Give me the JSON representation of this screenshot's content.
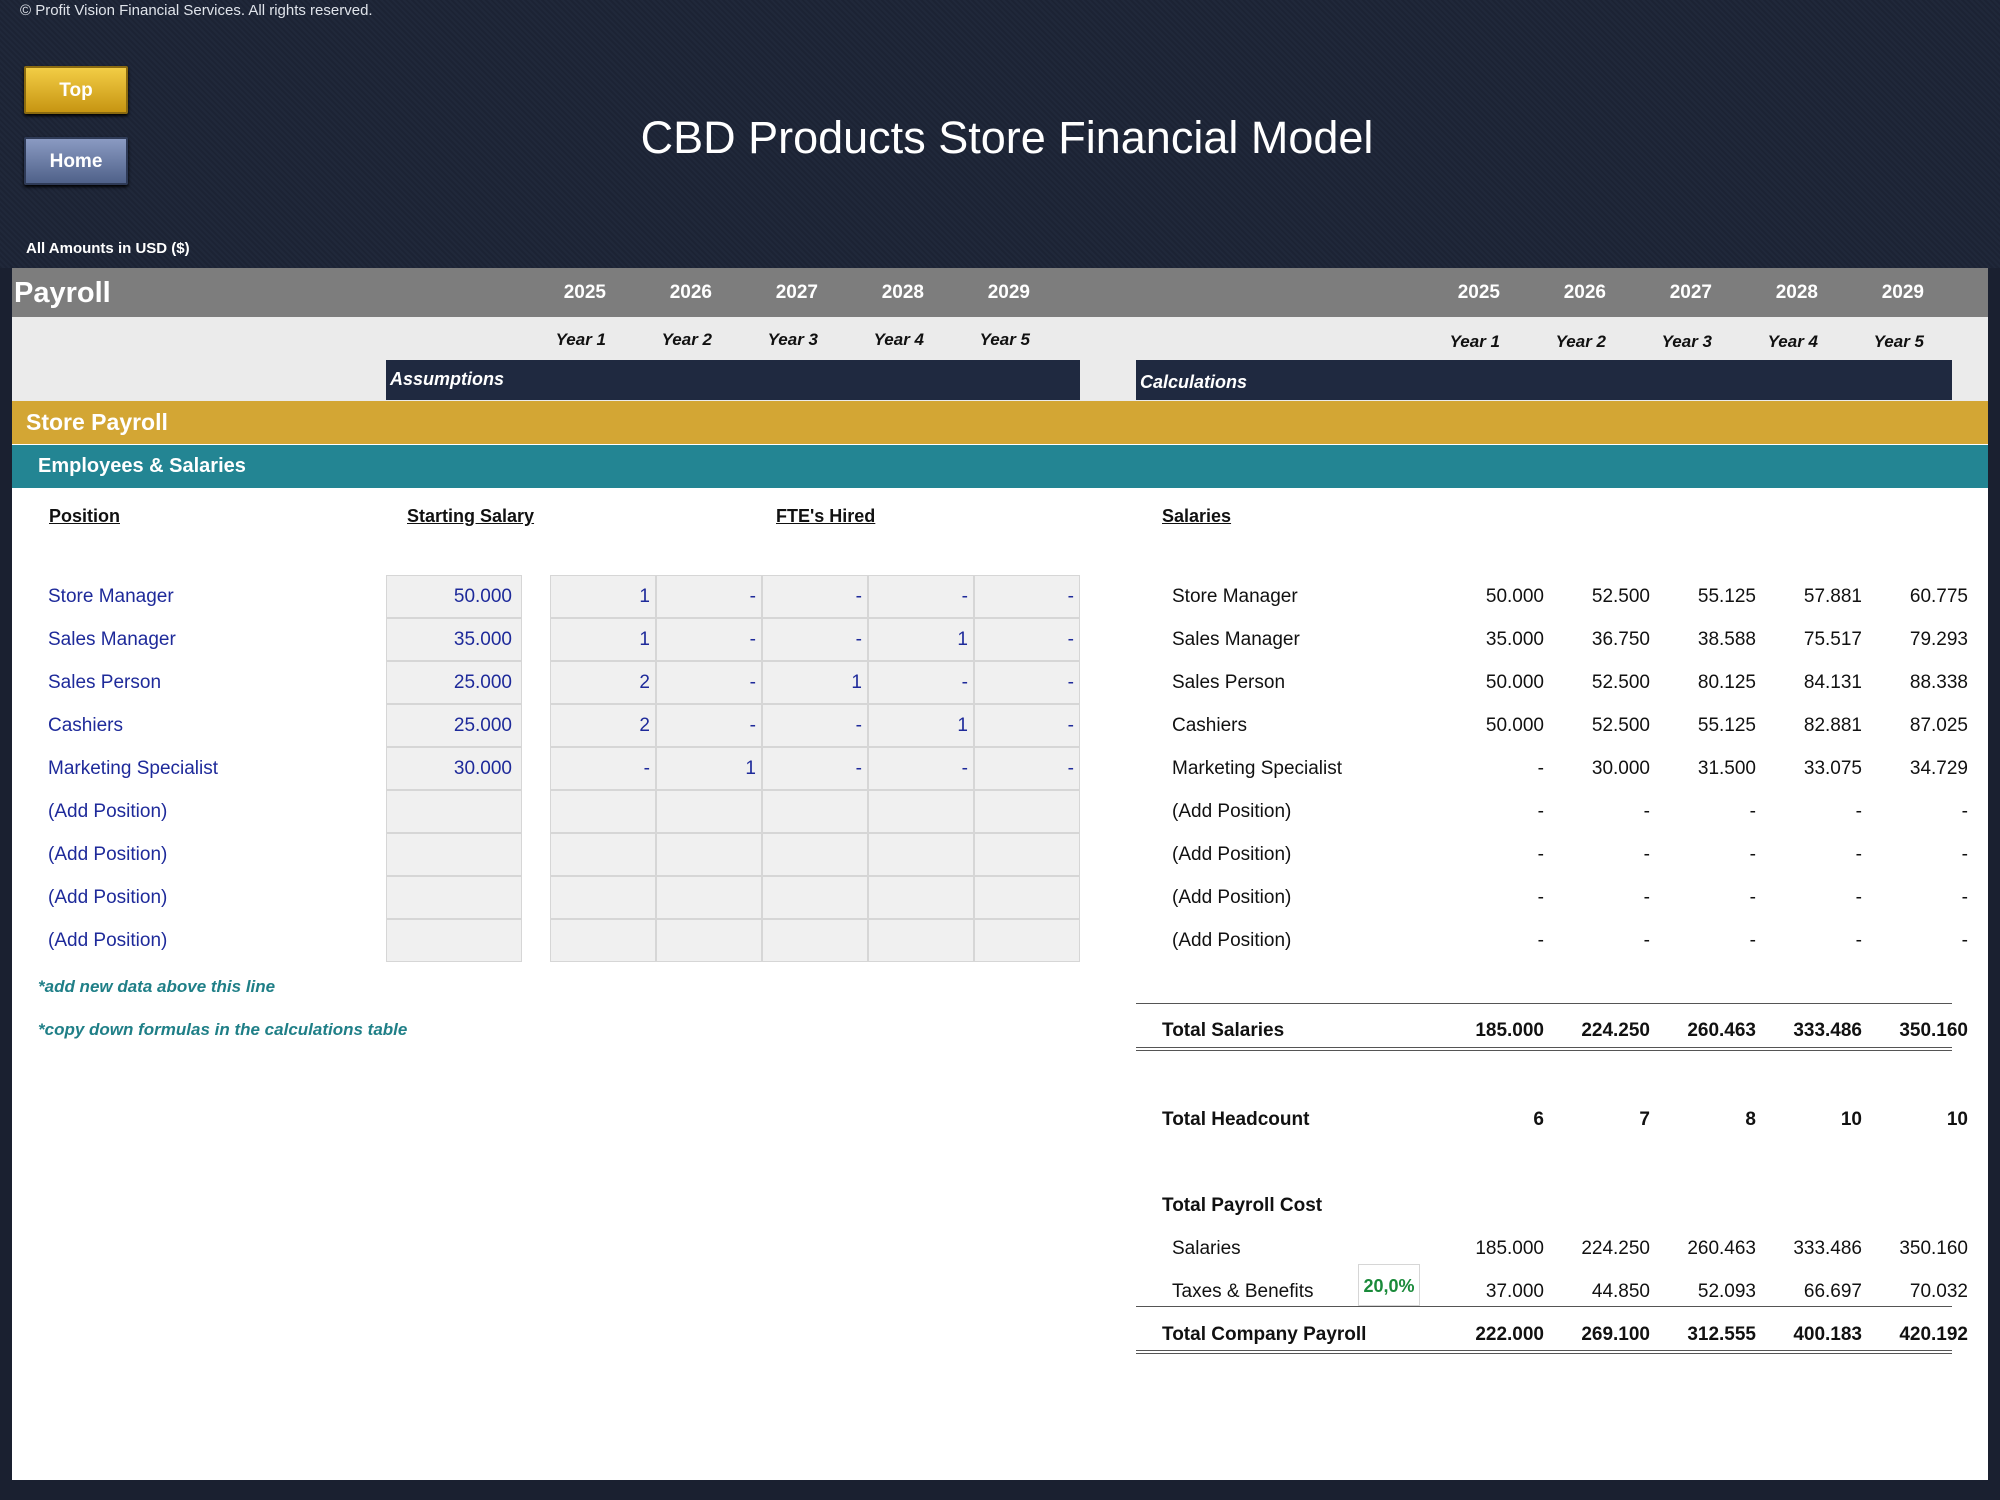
{
  "header": {
    "copyright": "© Profit Vision Financial Services. All rights reserved.",
    "top_button": "Top",
    "home_button": "Home",
    "title": "CBD Products Store Financial Model",
    "currency_note": "All Amounts in  USD ($)"
  },
  "sheet": {
    "title": "Payroll",
    "years": [
      "2025",
      "2026",
      "2027",
      "2028",
      "2029"
    ],
    "year_labels": [
      "Year 1",
      "Year 2",
      "Year 3",
      "Year 4",
      "Year 5"
    ],
    "assumptions_label": "Assumptions",
    "calculations_label": "Calculations",
    "section": "Store Payroll",
    "subsection": "Employees & Salaries",
    "col_position": "Position",
    "col_starting_salary": "Starting Salary",
    "col_fte": "FTE's Hired",
    "col_salaries": "Salaries"
  },
  "positions": [
    {
      "name": "Store Manager",
      "salary": "50.000",
      "fte": [
        "1",
        "-",
        "-",
        "-",
        "-"
      ],
      "salaries": [
        "50.000",
        "52.500",
        "55.125",
        "57.881",
        "60.775"
      ]
    },
    {
      "name": "Sales Manager",
      "salary": "35.000",
      "fte": [
        "1",
        "-",
        "-",
        "1",
        "-"
      ],
      "salaries": [
        "35.000",
        "36.750",
        "38.588",
        "75.517",
        "79.293"
      ]
    },
    {
      "name": "Sales Person",
      "salary": "25.000",
      "fte": [
        "2",
        "-",
        "1",
        "-",
        "-"
      ],
      "salaries": [
        "50.000",
        "52.500",
        "80.125",
        "84.131",
        "88.338"
      ]
    },
    {
      "name": "Cashiers",
      "salary": "25.000",
      "fte": [
        "2",
        "-",
        "-",
        "1",
        "-"
      ],
      "salaries": [
        "50.000",
        "52.500",
        "55.125",
        "82.881",
        "87.025"
      ]
    },
    {
      "name": "Marketing Specialist",
      "salary": "30.000",
      "fte": [
        "-",
        "1",
        "-",
        "-",
        "-"
      ],
      "salaries": [
        "-",
        "30.000",
        "31.500",
        "33.075",
        "34.729"
      ]
    },
    {
      "name": "(Add Position)",
      "salary": "",
      "fte": [
        "",
        "",
        "",
        "",
        ""
      ],
      "salaries": [
        "-",
        "-",
        "-",
        "-",
        "-"
      ]
    },
    {
      "name": "(Add Position)",
      "salary": "",
      "fte": [
        "",
        "",
        "",
        "",
        ""
      ],
      "salaries": [
        "-",
        "-",
        "-",
        "-",
        "-"
      ]
    },
    {
      "name": "(Add Position)",
      "salary": "",
      "fte": [
        "",
        "",
        "",
        "",
        ""
      ],
      "salaries": [
        "-",
        "-",
        "-",
        "-",
        "-"
      ]
    },
    {
      "name": "(Add Position)",
      "salary": "",
      "fte": [
        "",
        "",
        "",
        "",
        ""
      ],
      "salaries": [
        "-",
        "-",
        "-",
        "-",
        "-"
      ]
    }
  ],
  "notes": [
    "*add new data above this line",
    "*copy down formulas in the calculations table"
  ],
  "totals": {
    "total_salaries_label": "Total Salaries",
    "total_salaries": [
      "185.000",
      "224.250",
      "260.463",
      "333.486",
      "350.160"
    ],
    "headcount_label": "Total Headcount",
    "headcount": [
      "6",
      "7",
      "8",
      "10",
      "10"
    ],
    "payroll_cost_label": "Total Payroll Cost",
    "salaries_label": "Salaries",
    "salaries": [
      "185.000",
      "224.250",
      "260.463",
      "333.486",
      "350.160"
    ],
    "taxes_label": "Taxes & Benefits",
    "taxes_rate": "20,0%",
    "taxes": [
      "37.000",
      "44.850",
      "52.093",
      "66.697",
      "70.032"
    ],
    "company_payroll_label": "Total Company Payroll",
    "company_payroll": [
      "222.000",
      "269.100",
      "312.555",
      "400.183",
      "420.192"
    ]
  },
  "colors": {
    "gold": "#d3a634",
    "teal": "#238593",
    "navy": "#1f2940",
    "input_blue": "#1e2a9a",
    "rate_green": "#1a8a3a"
  }
}
